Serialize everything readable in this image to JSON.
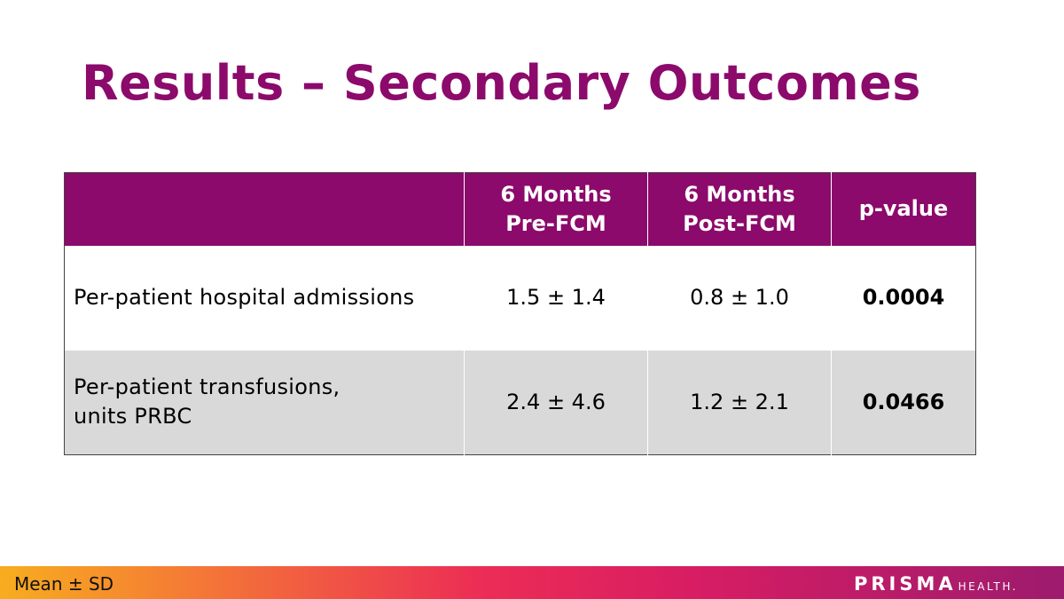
{
  "slide": {
    "title": "Results – Secondary Outcomes"
  },
  "table": {
    "headers": [
      "",
      "6 Months Pre-FCM",
      "6 Months Post-FCM",
      "p-value"
    ],
    "header_lines": {
      "pre": [
        "6 Months",
        "Pre-FCM"
      ],
      "post": [
        "6 Months",
        "Post-FCM"
      ]
    },
    "rows": [
      {
        "label_lines": [
          "Per-patient hospital admissions"
        ],
        "pre": "1.5 ± 1.4",
        "post": "0.8 ± 1.0",
        "p_value": "0.0004"
      },
      {
        "label_lines": [
          "Per-patient transfusions,",
          "units PRBC"
        ],
        "pre": "2.4 ± 4.6",
        "post": "1.2 ± 2.1",
        "p_value": "0.0466"
      }
    ]
  },
  "footer": {
    "note": "Mean ± SD",
    "logo_main": "PRISMA",
    "logo_sub": "HEALTH."
  },
  "colors": {
    "brand_purple": "#8b0a6b",
    "row_alt": "#d9d9d9"
  }
}
